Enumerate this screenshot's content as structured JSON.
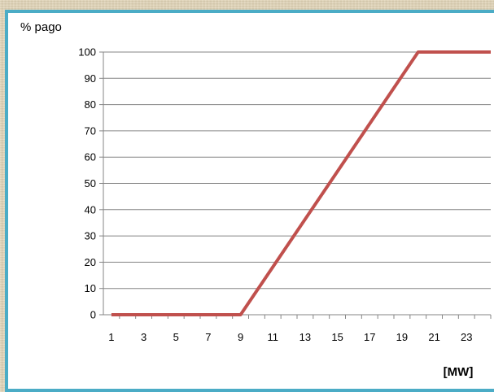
{
  "chart_data": {
    "type": "line",
    "title": "",
    "ylabel": "% pago",
    "xlabel": "[MW]",
    "x_ticks": [
      1,
      3,
      5,
      7,
      9,
      11,
      13,
      15,
      17,
      19,
      21,
      23
    ],
    "y_ticks": [
      0,
      10,
      20,
      30,
      40,
      50,
      60,
      70,
      80,
      90,
      100
    ],
    "xlim": [
      0.5,
      24.5
    ],
    "ylim": [
      0,
      100
    ],
    "grid": "horizontal",
    "legend": "none",
    "series": [
      {
        "color": "#c0504d",
        "x": [
          1,
          9,
          20,
          24.5
        ],
        "y": [
          0,
          0,
          100,
          100
        ]
      }
    ]
  }
}
